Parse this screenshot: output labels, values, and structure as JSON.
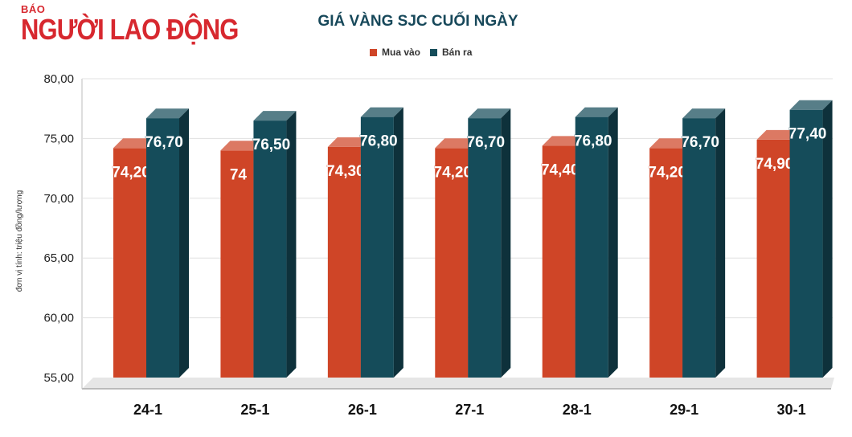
{
  "brand": {
    "line1": "BÁO",
    "line2": "NGƯỜI LAO ĐỘNG"
  },
  "colors": {
    "brand": "#d7282f",
    "buy": "#cf4527",
    "sell": "#154c5a",
    "title": "#17485a"
  },
  "chart_data": {
    "type": "bar",
    "title": "GIÁ VÀNG SJC CUỐI NGÀY",
    "xlabel": "",
    "ylabel": "đơn vị tính: triệu đồng/lượng",
    "ylim": [
      55,
      80
    ],
    "yticks": [
      "55,00",
      "60,00",
      "65,00",
      "70,00",
      "75,00",
      "80,00"
    ],
    "categories": [
      "24-1",
      "25-1",
      "26-1",
      "27-1",
      "28-1",
      "29-1",
      "30-1"
    ],
    "series": [
      {
        "name": "Mua vào",
        "values": [
          74.2,
          74.0,
          74.3,
          74.2,
          74.4,
          74.2,
          74.9
        ],
        "labels": [
          "74,20",
          "74",
          "74,30",
          "74,20",
          "74,40",
          "74,20",
          "74,90"
        ]
      },
      {
        "name": "Bán ra",
        "values": [
          76.7,
          76.5,
          76.8,
          76.7,
          76.8,
          76.7,
          77.4
        ],
        "labels": [
          "76,70",
          "76,50",
          "76,80",
          "76,70",
          "76,80",
          "76,70",
          "77,40"
        ]
      }
    ],
    "grid": true,
    "legend": "top-center"
  }
}
